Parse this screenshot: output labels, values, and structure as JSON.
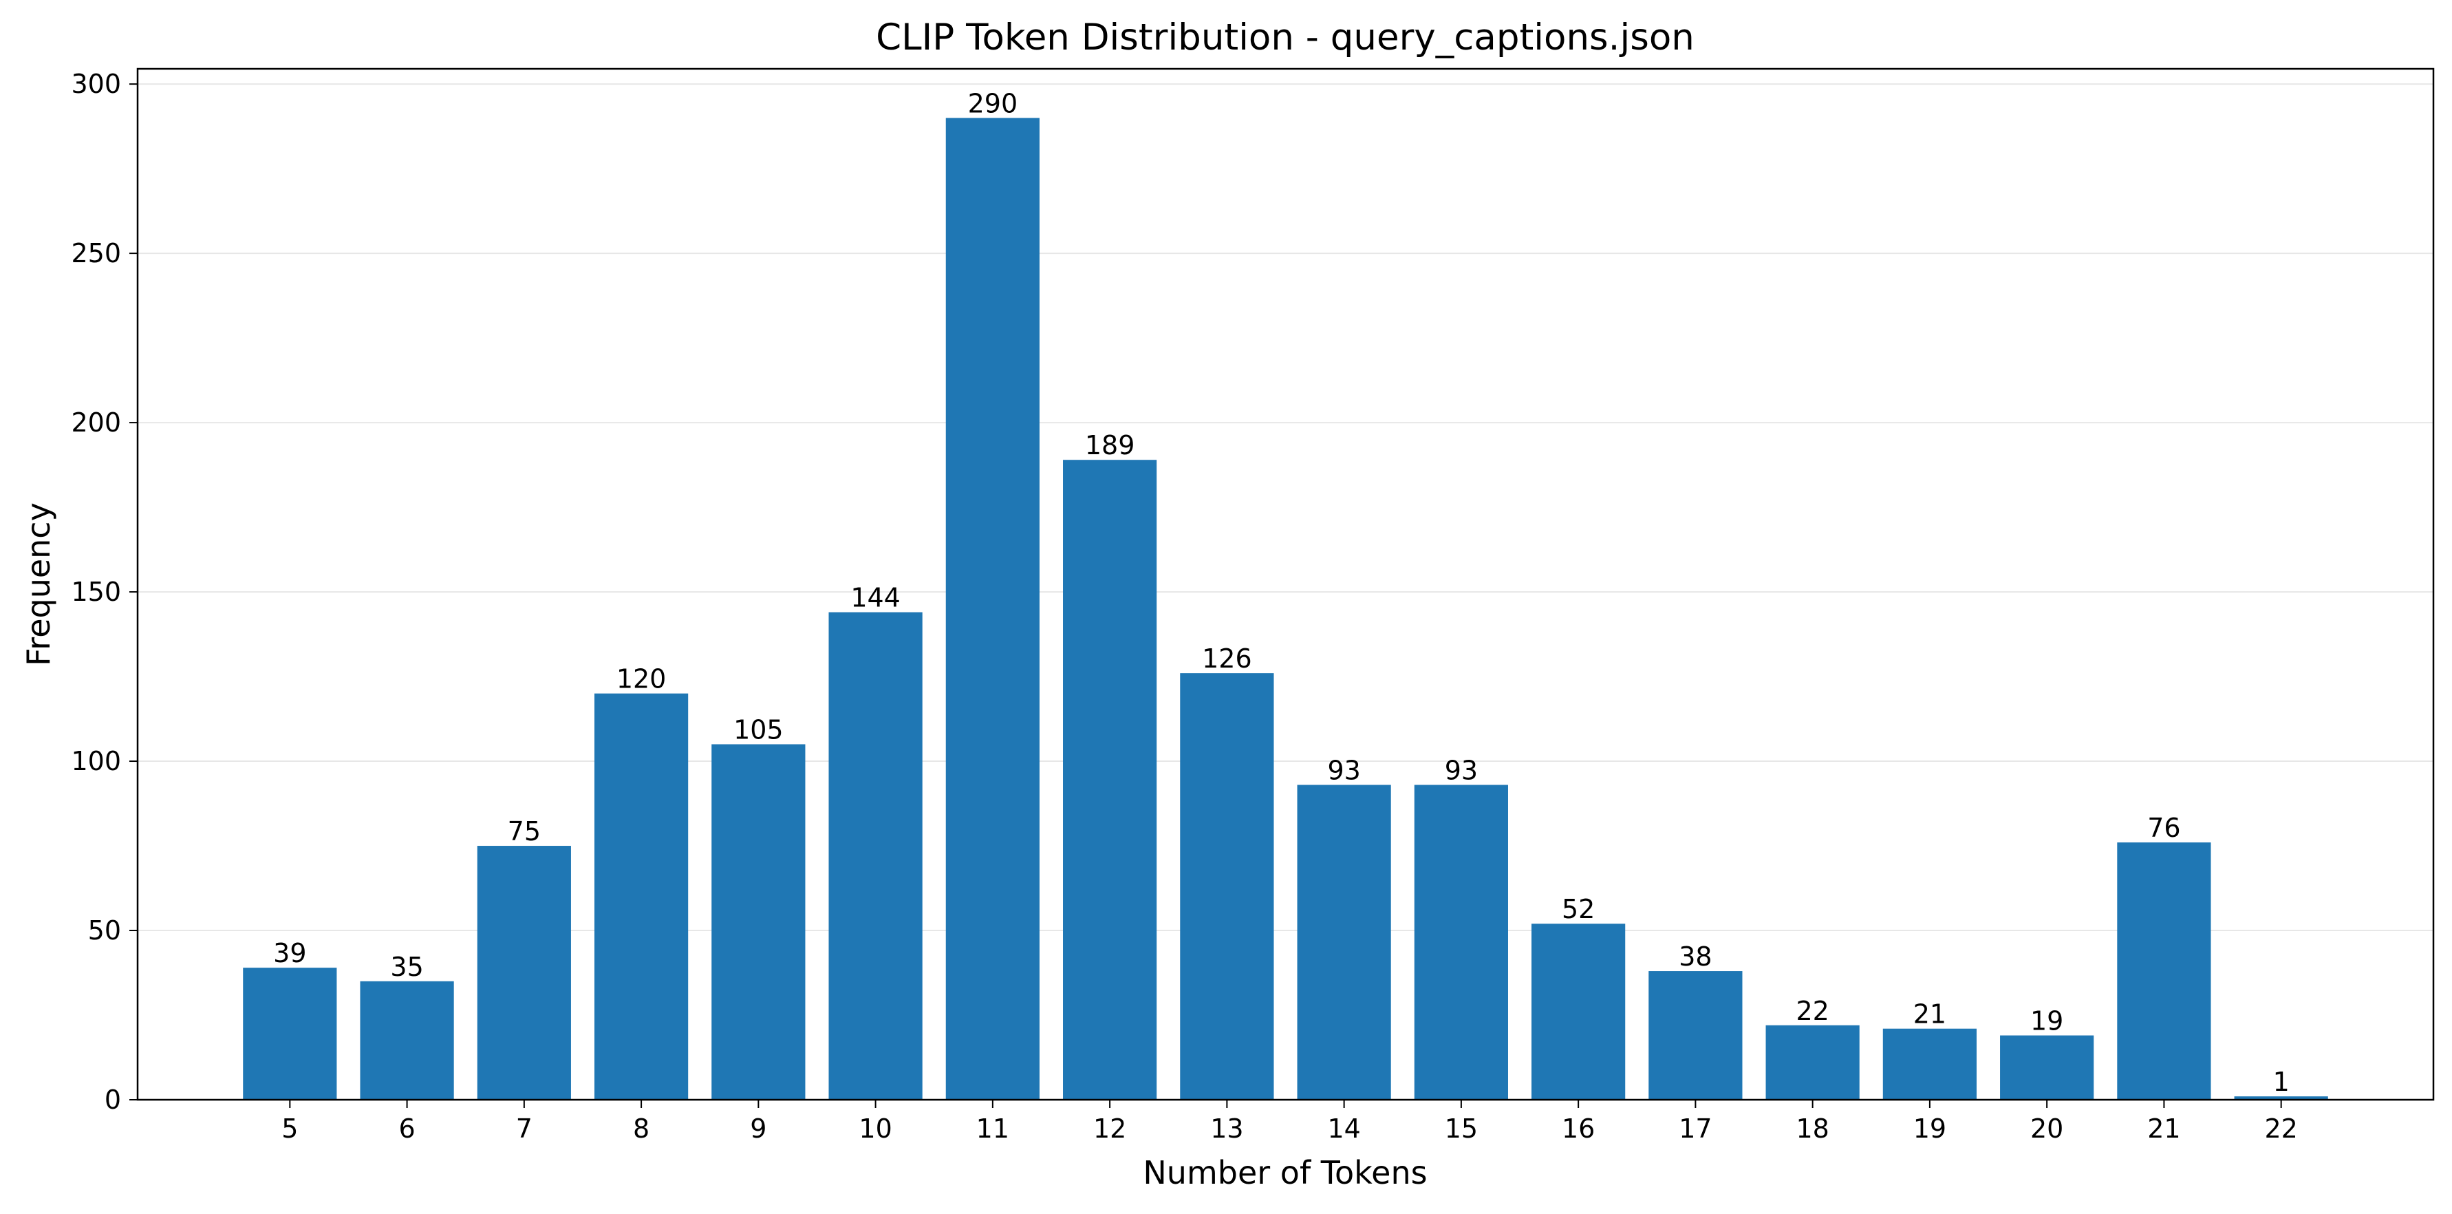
{
  "chart_data": {
    "type": "bar",
    "title": "CLIP Token Distribution - query_captions.json",
    "xlabel": "Number of Tokens",
    "ylabel": "Frequency",
    "categories": [
      "5",
      "6",
      "7",
      "8",
      "9",
      "10",
      "11",
      "12",
      "13",
      "14",
      "15",
      "16",
      "17",
      "18",
      "19",
      "20",
      "21",
      "22"
    ],
    "values": [
      39,
      35,
      75,
      120,
      105,
      144,
      290,
      189,
      126,
      93,
      93,
      52,
      38,
      22,
      21,
      19,
      76,
      1
    ],
    "data_labels": [
      "39",
      "35",
      "75",
      "120",
      "105",
      "144",
      "290",
      "189",
      "126",
      "93",
      "93",
      "52",
      "38",
      "22",
      "21",
      "19",
      "76",
      "1"
    ],
    "yticks": [
      "0",
      "50",
      "100",
      "150",
      "200",
      "250",
      "300"
    ],
    "ylim": [
      0,
      304.5
    ],
    "xlim": [
      3.7,
      23.3
    ],
    "grid": "y-only",
    "legend": "none",
    "colors": {
      "bar": "#1f77b4"
    }
  }
}
